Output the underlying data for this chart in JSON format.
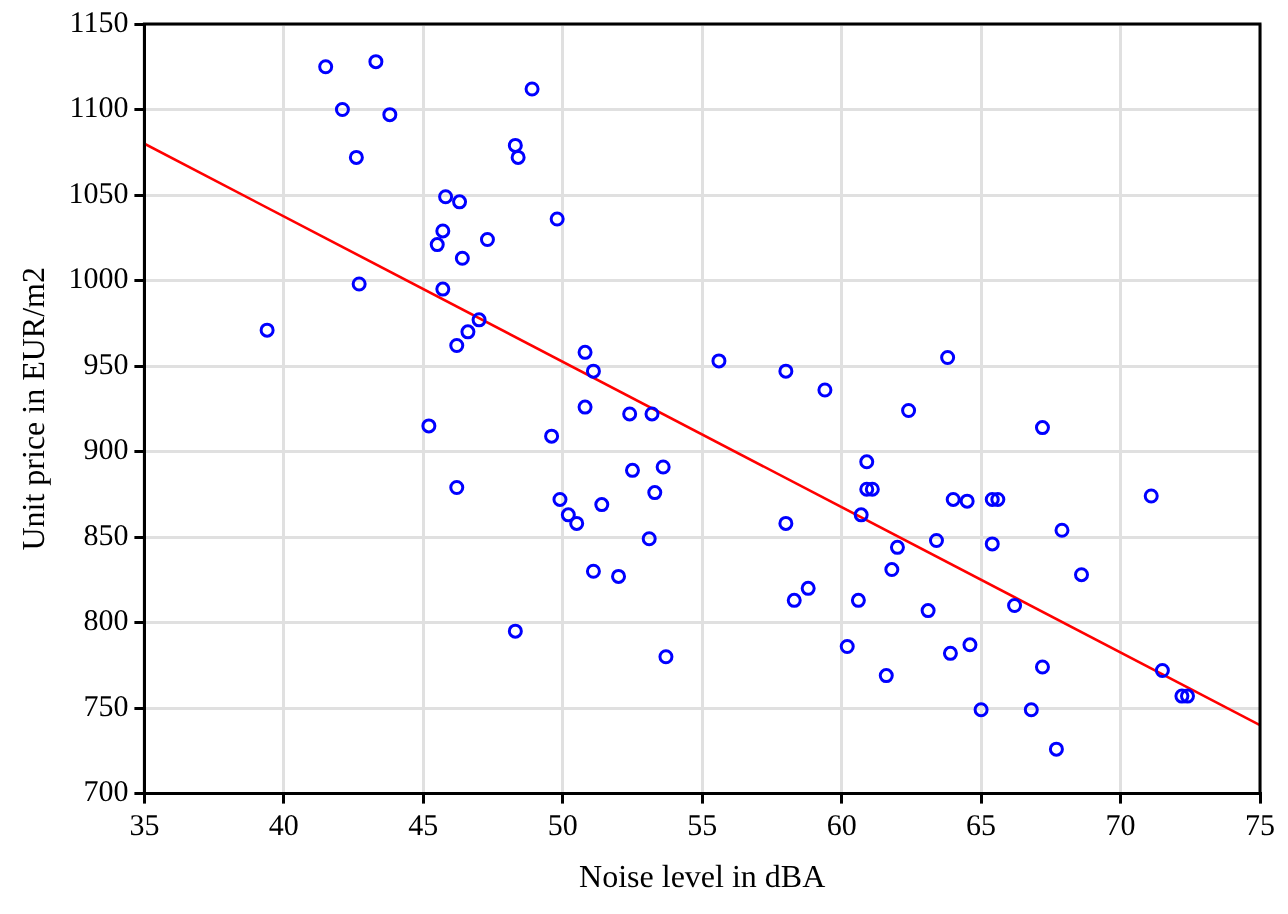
{
  "chart_data": {
    "type": "scatter",
    "xlabel": "Noise level in dBA",
    "ylabel": "Unit price in EUR/m2",
    "x": [
      41.5,
      43.3,
      42.1,
      43.8,
      48.9,
      42.6,
      48.3,
      48.4,
      45.8,
      46.3,
      49.8,
      45.7,
      45.5,
      47.3,
      46.4,
      42.7,
      45.7,
      39.4,
      47.0,
      46.6,
      46.2,
      50.8,
      51.1,
      50.8,
      52.4,
      53.2,
      45.2,
      49.6,
      46.2,
      52.5,
      53.6,
      49.9,
      53.3,
      51.4,
      50.2,
      50.5,
      53.1,
      51.1,
      52.0,
      48.3,
      53.7,
      55.6,
      58.0,
      59.4,
      63.8,
      62.4,
      67.2,
      60.9,
      60.9,
      61.1,
      64.0,
      64.5,
      65.4,
      65.6,
      71.1,
      58.0,
      60.7,
      67.9,
      62.0,
      63.4,
      65.4,
      61.8,
      68.6,
      58.8,
      58.3,
      60.6,
      66.2,
      63.1,
      60.2,
      63.9,
      64.6,
      67.2,
      71.5,
      72.2,
      72.4,
      61.6,
      65.0,
      66.8,
      67.7
    ],
    "series": [
      {
        "color": "#0000ff",
        "marker": "circle",
        "values": [
          1125,
          1128,
          1100,
          1097,
          1112,
          1072,
          1079,
          1072,
          1049,
          1046,
          1036,
          1029,
          1021,
          1024,
          1013,
          998,
          995,
          971,
          977,
          970,
          962,
          958,
          947,
          926,
          922,
          922,
          915,
          909,
          879,
          889,
          891,
          872,
          876,
          869,
          863,
          858,
          849,
          830,
          827,
          795,
          780,
          953,
          947,
          936,
          955,
          924,
          914,
          894,
          878,
          878,
          872,
          871,
          872,
          872,
          874,
          858,
          863,
          854,
          844,
          848,
          846,
          831,
          828,
          820,
          813,
          813,
          810,
          807,
          786,
          782,
          787,
          774,
          772,
          757,
          757,
          769,
          749,
          749,
          726
        ]
      },
      {
        "type": "line",
        "color": "#ff0000",
        "marker": "none",
        "x": [
          35,
          75
        ],
        "values": [
          1080,
          740
        ]
      }
    ],
    "xlim": [
      35,
      75
    ],
    "xticks": [
      35,
      40,
      45,
      50,
      55,
      60,
      65,
      70,
      75
    ],
    "ylim": [
      700,
      1150
    ],
    "yticks": [
      700,
      750,
      800,
      850,
      900,
      950,
      1000,
      1050,
      1100,
      1150
    ],
    "grid": true,
    "legend": false
  }
}
